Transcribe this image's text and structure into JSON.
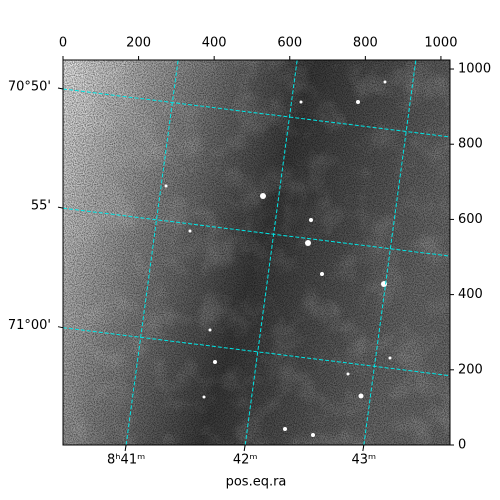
{
  "chart_data": {
    "type": "image",
    "xlabel": "pos.eq.ra",
    "xlim": [
      0,
      1024
    ],
    "ylim": [
      0,
      1024
    ],
    "xticks": [
      0,
      200,
      400,
      600,
      800,
      1000
    ],
    "yticks": [
      0,
      200,
      400,
      600,
      800,
      1000
    ],
    "ra_ticks": [
      {
        "value": 167,
        "label": "8ʰ41ᵐ"
      },
      {
        "value": 482,
        "label": "42ᵐ"
      },
      {
        "value": 796,
        "label": "43ᵐ"
      }
    ],
    "dec_ticks": [
      {
        "value": 947,
        "label": "70°50'"
      },
      {
        "value": 630,
        "label": "55'"
      },
      {
        "value": 312,
        "label": "71°00'"
      }
    ],
    "grid_color": "#00e5e5"
  }
}
